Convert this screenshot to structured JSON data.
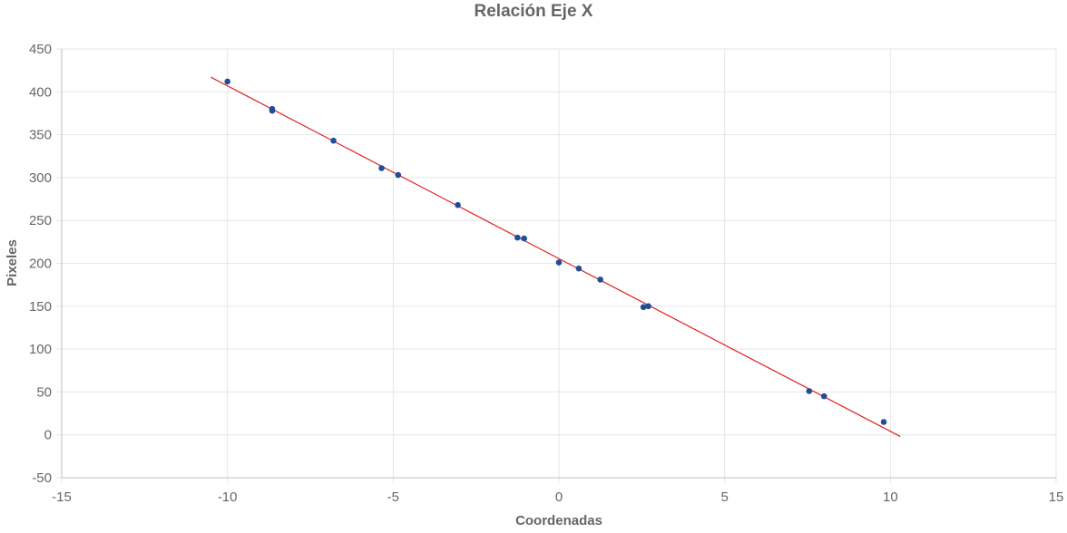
{
  "chart_data": {
    "type": "scatter",
    "title": "Relación Eje X",
    "xlabel": "Coordenadas",
    "ylabel": "Pixeles",
    "xlim": [
      -15,
      15
    ],
    "ylim": [
      -50,
      450
    ],
    "x_ticks": [
      -15,
      -10,
      -5,
      0,
      5,
      10,
      15
    ],
    "y_ticks": [
      -50,
      0,
      50,
      100,
      150,
      200,
      250,
      300,
      350,
      400,
      450
    ],
    "grid": true,
    "legend": "none",
    "colors": {
      "points": "#1f4e99",
      "line": "#e02020"
    },
    "series": [
      {
        "type": "scatter",
        "points": [
          {
            "x": -10.0,
            "y": 412
          },
          {
            "x": -8.65,
            "y": 380
          },
          {
            "x": -8.65,
            "y": 378
          },
          {
            "x": -6.8,
            "y": 343
          },
          {
            "x": -5.35,
            "y": 311
          },
          {
            "x": -4.85,
            "y": 303
          },
          {
            "x": -3.05,
            "y": 268
          },
          {
            "x": -1.25,
            "y": 230
          },
          {
            "x": -1.05,
            "y": 229
          },
          {
            "x": 0.0,
            "y": 201
          },
          {
            "x": 0.6,
            "y": 194
          },
          {
            "x": 1.25,
            "y": 181
          },
          {
            "x": 2.55,
            "y": 149
          },
          {
            "x": 2.7,
            "y": 150
          },
          {
            "x": 7.55,
            "y": 51
          },
          {
            "x": 8.0,
            "y": 45
          },
          {
            "x": 9.8,
            "y": 15
          }
        ]
      },
      {
        "type": "line",
        "points": [
          {
            "x": -10.5,
            "y": 417
          },
          {
            "x": 10.3,
            "y": -2
          }
        ]
      }
    ]
  }
}
